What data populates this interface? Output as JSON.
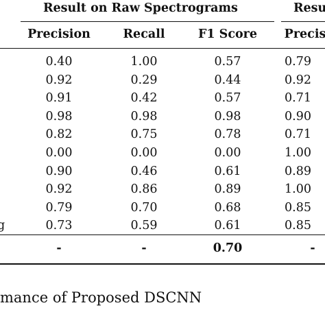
{
  "table": {
    "group_headers": {
      "raw": "Result on Raw Spectrograms",
      "second_clipped": "Resu"
    },
    "columns": {
      "precision": "Precision",
      "recall": "Recall",
      "f1": "F1 Score",
      "second_precision_clipped": "Precis"
    },
    "rows": [
      {
        "stub": "",
        "precision": "0.40",
        "recall": "1.00",
        "f1": "0.57",
        "second": "0.79"
      },
      {
        "stub": "",
        "precision": "0.92",
        "recall": "0.29",
        "f1": "0.44",
        "second": "0.92"
      },
      {
        "stub": "",
        "precision": "0.91",
        "recall": "0.42",
        "f1": "0.57",
        "second": "0.71"
      },
      {
        "stub": "",
        "precision": "0.98",
        "recall": "0.98",
        "f1": "0.98",
        "second": "0.90"
      },
      {
        "stub": "",
        "precision": "0.82",
        "recall": "0.75",
        "f1": "0.78",
        "second": "0.71"
      },
      {
        "stub": "",
        "precision": "0.00",
        "recall": "0.00",
        "f1": "0.00",
        "second": "1.00"
      },
      {
        "stub": "",
        "precision": "0.90",
        "recall": "0.46",
        "f1": "0.61",
        "second": "0.89"
      },
      {
        "stub": "",
        "precision": "0.92",
        "recall": "0.86",
        "f1": "0.89",
        "second": "1.00"
      },
      {
        "stub": "",
        "precision": "0.79",
        "recall": "0.70",
        "f1": "0.68",
        "second": "0.85"
      },
      {
        "stub": "g",
        "precision": "0.73",
        "recall": "0.59",
        "f1": "0.61",
        "second": "0.85"
      }
    ],
    "total": {
      "precision": "-",
      "recall": "-",
      "f1": "0.70",
      "second": "-"
    }
  },
  "caption": "mance of Proposed DSCNN"
}
